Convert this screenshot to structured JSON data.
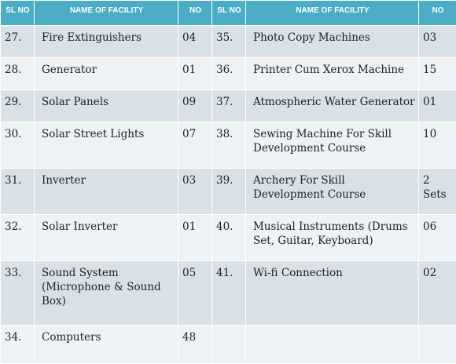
{
  "headers": [
    "SL NO",
    "NAME OF FACILITY",
    "NO",
    "SL NO",
    "NAME OF FACILITY",
    "NO"
  ],
  "rows": [
    {
      "sl1": "27.",
      "name1": "Fire Extinguishers",
      "no1": "04",
      "sl2": "35.",
      "name2": "Photo Copy Machines",
      "no2": "03"
    },
    {
      "sl1": "28.",
      "name1": "Generator",
      "no1": "01",
      "sl2": "36.",
      "name2": "Printer Cum Xerox Machine",
      "no2": "15"
    },
    {
      "sl1": "29.",
      "name1": "Solar Panels",
      "no1": "09",
      "sl2": "37.",
      "name2": "Atmospheric Water Generator",
      "no2": "01"
    },
    {
      "sl1": "30.",
      "name1": "Solar Street Lights",
      "no1": "07",
      "sl2": "38.",
      "name2": "Sewing Machine For Skill Development Course",
      "no2": "10"
    },
    {
      "sl1": "31.",
      "name1": "Inverter",
      "no1": "03",
      "sl2": "39.",
      "name2": "Archery  For Skill Development Course",
      "no2": "2 Sets"
    },
    {
      "sl1": "32.",
      "name1": "Solar Inverter",
      "no1": "01",
      "sl2": "40.",
      "name2": "Musical Instruments (Drums Set, Guitar, Keyboard)",
      "no2": "06"
    },
    {
      "sl1": "33.",
      "name1": "Sound System (Microphone & Sound Box)",
      "no1": "05",
      "sl2": "41.",
      "name2": "Wi-fi Connection",
      "no2": "02"
    },
    {
      "sl1": "34.",
      "name1": "Computers",
      "no1": "48",
      "sl2": "",
      "name2": "",
      "no2": ""
    }
  ],
  "colors": {
    "header": "#4bacc6",
    "row_dark": "#d9e1e8",
    "row_light": "#eef2f5"
  }
}
